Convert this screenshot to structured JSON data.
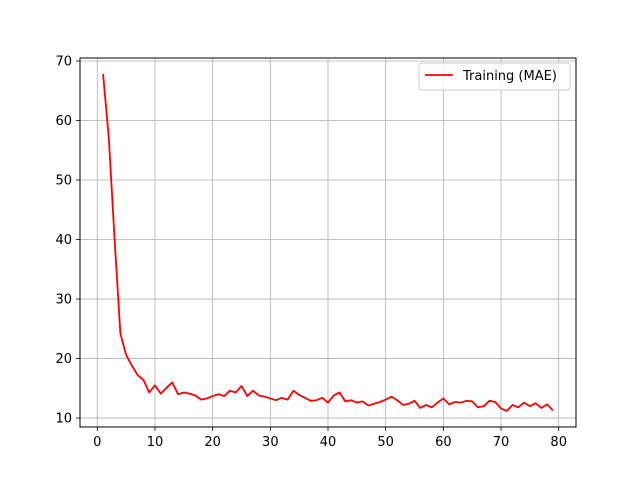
{
  "chart_data": {
    "type": "line",
    "title": "",
    "xlabel": "",
    "ylabel": "",
    "xlim": [
      -3,
      83
    ],
    "ylim": [
      8.5,
      70.5
    ],
    "xticks": [
      0,
      10,
      20,
      30,
      40,
      50,
      60,
      70,
      80
    ],
    "yticks": [
      10,
      20,
      30,
      40,
      50,
      60,
      70
    ],
    "grid": true,
    "legend_position": "top-right",
    "series": [
      {
        "name": "Training (MAE)",
        "color": "#ff0000",
        "x": [
          1,
          2,
          3,
          4,
          5,
          6,
          7,
          8,
          9,
          10,
          11,
          12,
          13,
          14,
          15,
          16,
          17,
          18,
          19,
          20,
          21,
          22,
          23,
          24,
          25,
          26,
          27,
          28,
          29,
          30,
          31,
          32,
          33,
          34,
          35,
          36,
          37,
          38,
          39,
          40,
          41,
          42,
          43,
          44,
          45,
          46,
          47,
          48,
          49,
          50,
          51,
          52,
          53,
          54,
          55,
          56,
          57,
          58,
          59,
          60,
          61,
          62,
          63,
          64,
          65,
          66,
          67,
          68,
          69,
          70,
          71,
          72,
          73,
          74,
          75,
          76,
          77,
          78,
          79
        ],
        "y": [
          67.8,
          57.0,
          40.0,
          24.2,
          20.6,
          18.8,
          17.2,
          16.4,
          14.3,
          15.5,
          14.1,
          15.1,
          16.0,
          14.0,
          14.3,
          14.1,
          13.8,
          13.1,
          13.3,
          13.7,
          14.0,
          13.7,
          14.6,
          14.3,
          15.4,
          13.7,
          14.6,
          13.8,
          13.6,
          13.3,
          13.0,
          13.4,
          13.1,
          14.6,
          13.9,
          13.4,
          12.9,
          13.0,
          13.4,
          12.6,
          13.8,
          14.3,
          12.8,
          13.0,
          12.6,
          12.8,
          12.1,
          12.4,
          12.7,
          13.1,
          13.6,
          13.0,
          12.2,
          12.4,
          12.9,
          11.7,
          12.2,
          11.8,
          12.6,
          13.3,
          12.3,
          12.7,
          12.6,
          12.9,
          12.8,
          11.8,
          12.0,
          12.9,
          12.7,
          11.6,
          11.2,
          12.2,
          11.8,
          12.6,
          12.0,
          12.5,
          11.7,
          12.3,
          11.3
        ]
      }
    ]
  }
}
